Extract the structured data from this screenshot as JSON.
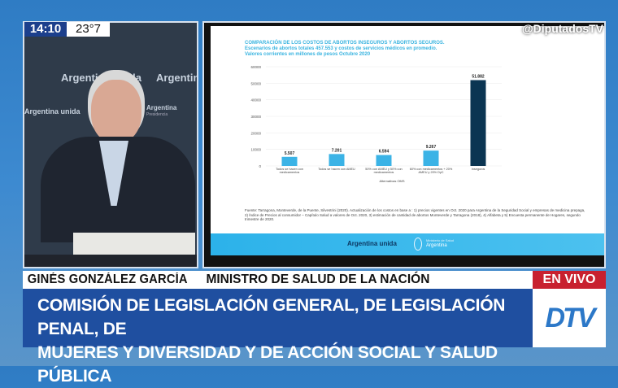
{
  "overlay": {
    "time": "14:10",
    "temperature": "23°7",
    "handle": "@DiputadosTV",
    "live_label": "EN VIVO",
    "logo": "DTV"
  },
  "camera": {
    "wall_text": "Argentina unida",
    "wall_text_2": "Argentina",
    "wall_sub": "Presidencia"
  },
  "lower_third": {
    "name": "GINÉS GONZÁLEZ GARCÍA",
    "role": "MINISTRO DE SALUD DE LA NACIÓN",
    "banner_line1": "COMISIÓN DE LEGISLACIÓN GENERAL, DE LEGISLACIÓN PENAL, DE",
    "banner_line2": "MUJERES Y DIVERSIDAD Y DE ACCIÓN SOCIAL Y SALUD PÚBLICA"
  },
  "slide": {
    "source": "Fuente: Tarragona, Monteverde, de la Puente, Silvestrini (2020). Actualización de los costos en base a : 1) precios vigentes en Oct. 2020 para Argentina de la Seguridad Social y empresas de medicina prepaga, 2) Índice de Precios al consumidor – Capítulo Salud a valores de Oct. 2020, 3) estimación de cantidad de abortos Monteverde y Tarragona (2018), 4) Alfabeta y 5) Encuesta permanente de Hogares, segundo trimestre de 2020.",
    "footer_brand": "Argentina unida",
    "footer_ministry": "Ministerio de Salud",
    "footer_country": "Argentina"
  },
  "chart_data": {
    "type": "bar",
    "title": "COMPARACIÓN DE LOS COSTOS DE ABORTOS INSEGUROS Y ABORTOS SEGUROS.",
    "subtitle": "Escenarios de abortos totales 457.553 y costos de servicios médicos en promedio.",
    "subtitle2": "Valores corrientes en millones de pesos Octubre 2020",
    "categories": [
      "Todos se hacen con medicamentos",
      "Todos se hacen con AMEU",
      "50% con AMEU y 50% con medicamentos",
      "60% con medicamentos + 20% AMEU y 20% DyC",
      "Inseguros"
    ],
    "values": [
      5507,
      7201,
      6594,
      9267,
      51882
    ],
    "data_labels": [
      "5.507",
      "7.201",
      "6.594",
      "9.267",
      "51.882"
    ],
    "xlabel": "Alternativas OMS",
    "ylim": [
      0,
      60000
    ],
    "yticks": [
      "0",
      "10000",
      "20000",
      "30000",
      "40000",
      "50000",
      "60000"
    ],
    "colors": [
      "#3bb3e6",
      "#3bb3e6",
      "#3bb3e6",
      "#3bb3e6",
      "#0b3552"
    ],
    "grid": true
  }
}
